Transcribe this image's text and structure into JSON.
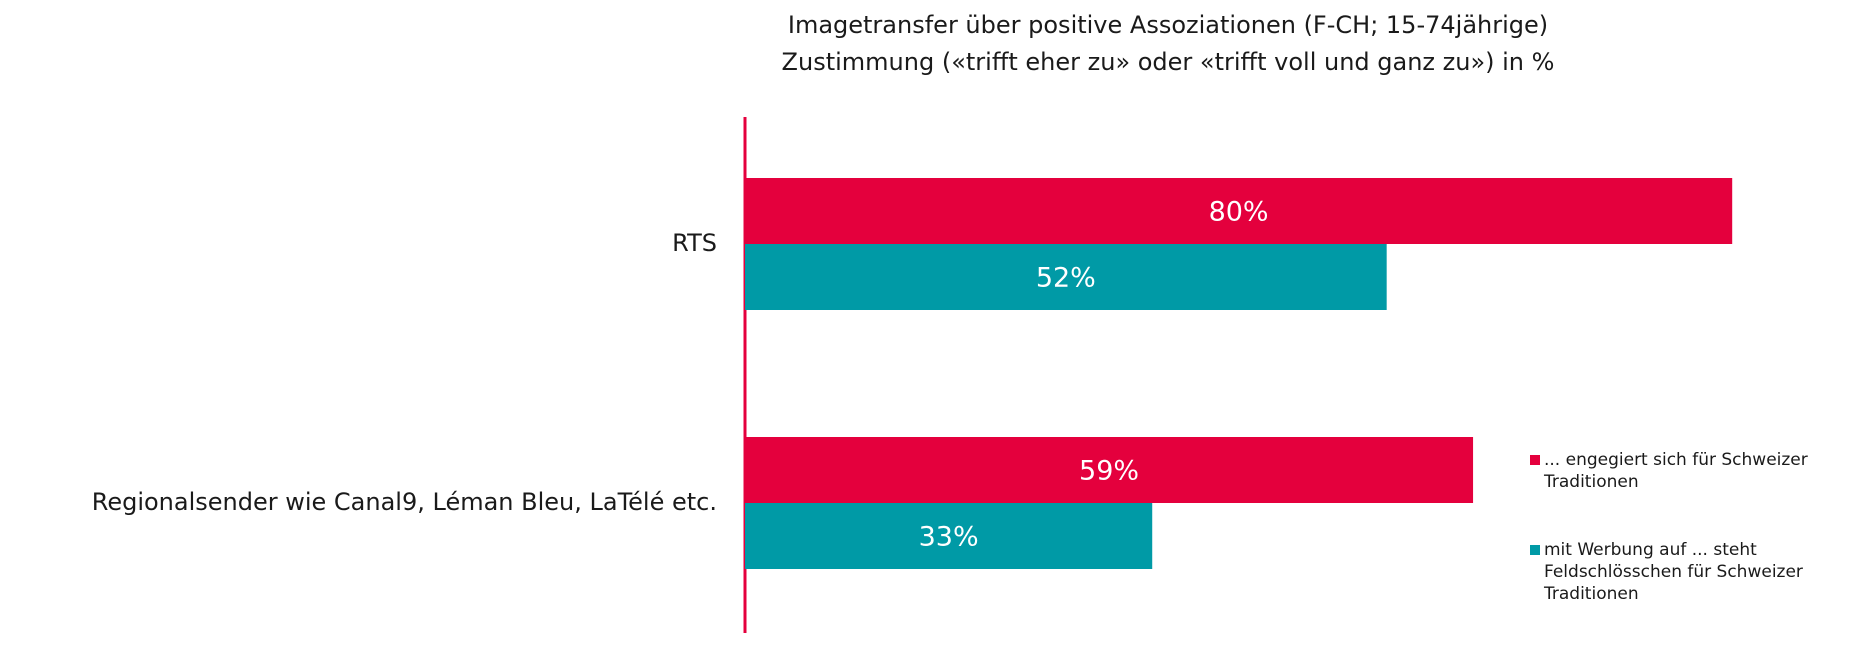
{
  "chart_data": {
    "type": "hbar",
    "title": "Imagetransfer über positive Assoziationen (F-CH; 15-74jährige)",
    "subtitle": "Zustimmung («trifft eher zu» oder «trifft voll und ganz zu») in %",
    "categories": [
      "RTS",
      "Regionalsender wie Canal9, Léman Bleu, LaTélé etc."
    ],
    "xlim": [
      0,
      100
    ],
    "series": [
      {
        "name": "... engegiert sich für Schweizer Traditionen",
        "color": "#e4003d",
        "values": [
          80,
          59
        ],
        "value_labels": [
          "80%",
          "59%"
        ]
      },
      {
        "name": "mit Werbung auf ... steht Feldschlösschen für Schweizer Traditionen",
        "color": "#009aa6",
        "values": [
          52,
          33
        ],
        "value_labels": [
          "52%",
          "33%"
        ]
      }
    ]
  }
}
